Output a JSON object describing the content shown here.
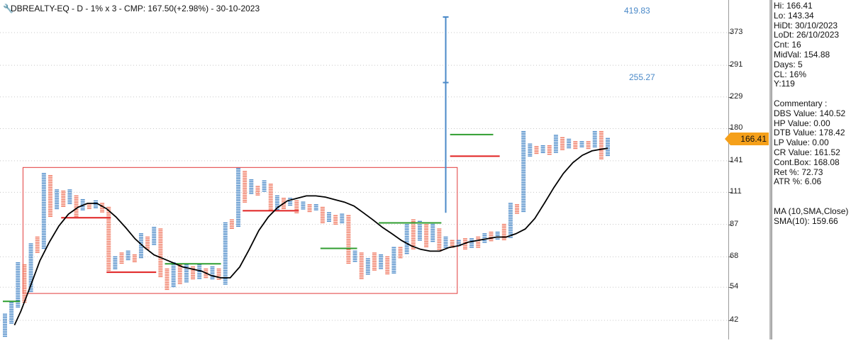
{
  "title": "DBREALTY-EQ - D - 1% x 3 - CMP: 167.50(+2.98%) - 30-10-2023",
  "current_price_tag": "166.41",
  "annotations": {
    "high_projection": "419.83",
    "mid_projection": "255.27"
  },
  "info_panel": [
    "Hi: 166.41",
    "Lo: 143.34",
    "HiDt: 30/10/2023",
    "LoDt: 26/10/2023",
    "Cnt: 16",
    "MidVal: 154.88",
    "Days: 5",
    "CL: 16%",
    "Y:119",
    "",
    "Commentary :",
    "DBS Value:  140.52",
    "HP Value: 0.00",
    "DTB Value: 178.42",
    "LP Value: 0.00",
    "CR Value: 161.52",
    "Cont.Box: 168.08",
    "Ret %: 72.73",
    "ATR %: 6.06",
    "",
    "",
    "MA (10,SMA,Close)",
    "SMA(10): 159.66"
  ],
  "colors": {
    "up": "#4a89c8",
    "down": "#f07860",
    "ma": "#000000",
    "box": "#e23b3b",
    "support": "#e02020",
    "resistance": "#2f9e2f",
    "tag": "#f5a01a"
  },
  "chart_data": {
    "type": "point-and-figure",
    "box_size": "1%",
    "reversal": 3,
    "y_scale": "log",
    "ylim": [
      38,
      470
    ],
    "y_ticks": [
      42,
      54,
      68,
      87,
      111,
      141,
      180,
      229,
      291,
      373
    ],
    "columns": [
      {
        "dir": "up",
        "low": 37,
        "high": 44
      },
      {
        "dir": "up",
        "low": 41,
        "high": 48
      },
      {
        "dir": "up",
        "low": 46,
        "high": 65
      },
      {
        "dir": "down",
        "low": 48,
        "high": 64
      },
      {
        "dir": "up",
        "low": 52,
        "high": 75
      },
      {
        "dir": "down",
        "low": 70,
        "high": 79
      },
      {
        "dir": "up",
        "low": 72,
        "high": 128
      },
      {
        "dir": "down",
        "low": 92,
        "high": 126
      },
      {
        "dir": "up",
        "low": 98,
        "high": 113
      },
      {
        "dir": "down",
        "low": 99,
        "high": 112
      },
      {
        "dir": "up",
        "low": 101,
        "high": 113
      },
      {
        "dir": "down",
        "low": 92,
        "high": 108
      },
      {
        "dir": "up",
        "low": 96,
        "high": 105
      },
      {
        "dir": "down",
        "low": 97,
        "high": 102
      },
      {
        "dir": "up",
        "low": 98,
        "high": 104
      },
      {
        "dir": "down",
        "low": 95,
        "high": 102
      },
      {
        "dir": "down",
        "low": 61,
        "high": 99
      },
      {
        "dir": "up",
        "low": 62,
        "high": 68
      },
      {
        "dir": "down",
        "low": 64,
        "high": 70
      },
      {
        "dir": "up",
        "low": 66,
        "high": 71
      },
      {
        "dir": "down",
        "low": 65,
        "high": 69
      },
      {
        "dir": "up",
        "low": 67,
        "high": 81
      },
      {
        "dir": "down",
        "low": 72,
        "high": 79
      },
      {
        "dir": "up",
        "low": 74,
        "high": 85
      },
      {
        "dir": "down",
        "low": 58,
        "high": 84
      },
      {
        "dir": "down",
        "low": 53,
        "high": 62
      },
      {
        "dir": "up",
        "low": 54,
        "high": 65
      },
      {
        "dir": "down",
        "low": 55,
        "high": 64
      },
      {
        "dir": "up",
        "low": 56,
        "high": 64
      },
      {
        "dir": "down",
        "low": 57,
        "high": 63
      },
      {
        "dir": "up",
        "low": 57,
        "high": 64
      },
      {
        "dir": "down",
        "low": 58,
        "high": 62
      },
      {
        "dir": "up",
        "low": 57,
        "high": 63
      },
      {
        "dir": "down",
        "low": 57,
        "high": 62
      },
      {
        "dir": "up",
        "low": 55,
        "high": 88
      },
      {
        "dir": "down",
        "low": 84,
        "high": 90
      },
      {
        "dir": "up",
        "low": 85,
        "high": 133
      },
      {
        "dir": "down",
        "low": 103,
        "high": 130
      },
      {
        "dir": "up",
        "low": 110,
        "high": 122
      },
      {
        "dir": "down",
        "low": 108,
        "high": 116
      },
      {
        "dir": "up",
        "low": 111,
        "high": 121
      },
      {
        "dir": "down",
        "low": 96,
        "high": 118
      },
      {
        "dir": "up",
        "low": 97,
        "high": 108
      },
      {
        "dir": "down",
        "low": 98,
        "high": 106
      },
      {
        "dir": "up",
        "low": 100,
        "high": 106
      },
      {
        "dir": "down",
        "low": 95,
        "high": 104
      },
      {
        "dir": "up",
        "low": 97,
        "high": 103
      },
      {
        "dir": "down",
        "low": 95,
        "high": 101
      },
      {
        "dir": "up",
        "low": 96,
        "high": 101
      },
      {
        "dir": "down",
        "low": 88,
        "high": 99
      },
      {
        "dir": "up",
        "low": 89,
        "high": 95
      },
      {
        "dir": "down",
        "low": 87,
        "high": 93
      },
      {
        "dir": "up",
        "low": 88,
        "high": 94
      },
      {
        "dir": "down",
        "low": 64,
        "high": 93
      },
      {
        "dir": "up",
        "low": 65,
        "high": 71
      },
      {
        "dir": "down",
        "low": 57,
        "high": 70
      },
      {
        "dir": "up",
        "low": 59,
        "high": 67
      },
      {
        "dir": "down",
        "low": 61,
        "high": 70
      },
      {
        "dir": "up",
        "low": 62,
        "high": 69
      },
      {
        "dir": "down",
        "low": 59,
        "high": 68
      },
      {
        "dir": "up",
        "low": 60,
        "high": 73
      },
      {
        "dir": "down",
        "low": 67,
        "high": 73
      },
      {
        "dir": "up",
        "low": 69,
        "high": 88
      },
      {
        "dir": "down",
        "low": 72,
        "high": 90
      },
      {
        "dir": "up",
        "low": 77,
        "high": 89
      },
      {
        "dir": "down",
        "low": 73,
        "high": 88
      },
      {
        "dir": "up",
        "low": 76,
        "high": 87
      },
      {
        "dir": "down",
        "low": 71,
        "high": 84
      },
      {
        "dir": "up",
        "low": 73,
        "high": 79
      },
      {
        "dir": "down",
        "low": 73,
        "high": 77
      },
      {
        "dir": "up",
        "low": 74,
        "high": 77
      },
      {
        "dir": "down",
        "low": 72,
        "high": 78
      },
      {
        "dir": "up",
        "low": 73,
        "high": 78
      },
      {
        "dir": "down",
        "low": 73,
        "high": 79
      },
      {
        "dir": "up",
        "low": 75,
        "high": 81
      },
      {
        "dir": "down",
        "low": 76,
        "high": 82
      },
      {
        "dir": "up",
        "low": 77,
        "high": 82
      },
      {
        "dir": "down",
        "low": 77,
        "high": 87
      },
      {
        "dir": "up",
        "low": 78,
        "high": 102
      },
      {
        "dir": "down",
        "low": 94,
        "high": 101
      },
      {
        "dir": "up",
        "low": 95,
        "high": 176
      },
      {
        "dir": "up",
        "low": 146,
        "high": 160
      },
      {
        "dir": "down",
        "low": 148,
        "high": 157
      },
      {
        "dir": "up",
        "low": 149,
        "high": 158
      },
      {
        "dir": "down",
        "low": 148,
        "high": 158
      },
      {
        "dir": "up",
        "low": 150,
        "high": 171
      },
      {
        "dir": "down",
        "low": 152,
        "high": 168
      },
      {
        "dir": "up",
        "low": 155,
        "high": 166
      },
      {
        "dir": "down",
        "low": 153,
        "high": 163
      },
      {
        "dir": "up",
        "low": 155,
        "high": 163
      },
      {
        "dir": "down",
        "low": 153,
        "high": 163
      },
      {
        "dir": "up",
        "low": 155,
        "high": 176
      },
      {
        "dir": "down",
        "low": 143,
        "high": 176
      },
      {
        "dir": "up",
        "low": 146,
        "high": 167
      }
    ],
    "sma10": [
      [
        3,
        40.5
      ],
      [
        5,
        45
      ],
      [
        7,
        51
      ],
      [
        9,
        58
      ],
      [
        11,
        66
      ],
      [
        14,
        76
      ],
      [
        17,
        86
      ],
      [
        20,
        94
      ],
      [
        23,
        99
      ],
      [
        26,
        102
      ],
      [
        29,
        102
      ],
      [
        32,
        98
      ],
      [
        35,
        92
      ],
      [
        38,
        85
      ],
      [
        41,
        78
      ],
      [
        44,
        73
      ],
      [
        47,
        69
      ],
      [
        50,
        67
      ],
      [
        53,
        65
      ],
      [
        56,
        63
      ],
      [
        59,
        62
      ],
      [
        62,
        61
      ],
      [
        65,
        59
      ],
      [
        68,
        58
      ],
      [
        71,
        58
      ],
      [
        74,
        63
      ],
      [
        77,
        72
      ],
      [
        80,
        83
      ],
      [
        83,
        92
      ],
      [
        86,
        99
      ],
      [
        89,
        104
      ],
      [
        92,
        106
      ],
      [
        95,
        108
      ],
      [
        98,
        108
      ],
      [
        101,
        107
      ],
      [
        104,
        105
      ],
      [
        107,
        103
      ],
      [
        110,
        100
      ],
      [
        113,
        95
      ],
      [
        116,
        90
      ],
      [
        119,
        85
      ],
      [
        122,
        81
      ],
      [
        125,
        77
      ],
      [
        128,
        74
      ],
      [
        131,
        72
      ],
      [
        134,
        71
      ],
      [
        137,
        71
      ],
      [
        140,
        73
      ],
      [
        143,
        74
      ],
      [
        146,
        76
      ],
      [
        149,
        77
      ],
      [
        152,
        78
      ],
      [
        155,
        79
      ],
      [
        158,
        79
      ],
      [
        161,
        81
      ],
      [
        164,
        84
      ],
      [
        167,
        91
      ],
      [
        170,
        102
      ],
      [
        173,
        115
      ],
      [
        176,
        128
      ],
      [
        179,
        139
      ],
      [
        182,
        147
      ],
      [
        185,
        152
      ],
      [
        188,
        154
      ],
      [
        190,
        155
      ]
    ],
    "support_lines": [
      {
        "value": 91.5,
        "from_col": 9,
        "to_col": 16
      },
      {
        "value": 60.5,
        "from_col": 16,
        "to_col": 23
      },
      {
        "value": 96.5,
        "from_col": 37,
        "to_col": 45
      },
      {
        "value": 146,
        "from_col": 69,
        "to_col": 76
      }
    ],
    "resistance_lines": [
      {
        "value": 48.5,
        "from_col": 0,
        "to_col": 2
      },
      {
        "value": 64.5,
        "from_col": 25,
        "to_col": 33
      },
      {
        "value": 72.5,
        "from_col": 49,
        "to_col": 54
      },
      {
        "value": 88,
        "from_col": 58,
        "to_col": 67
      },
      {
        "value": 172,
        "from_col": 69,
        "to_col": 75
      }
    ],
    "consolidation_box": {
      "low": 51.5,
      "high": 134,
      "from_col": 3,
      "to_col": 69
    },
    "projection": {
      "col": 68,
      "from": 95,
      "to": 419.83,
      "mid": 255.27
    }
  }
}
